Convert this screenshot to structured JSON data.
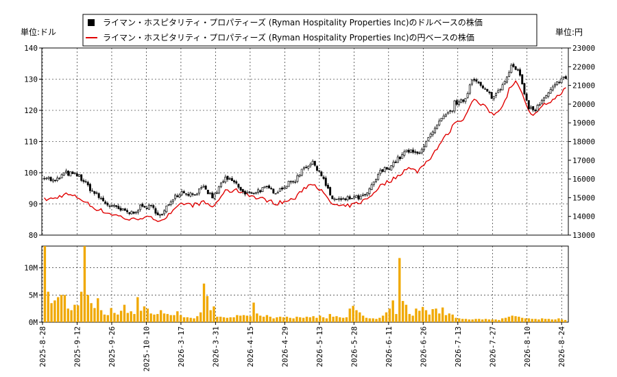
{
  "chart_data": {
    "type": "line",
    "units": {
      "left": "単位:ドル",
      "right": "単位:円"
    },
    "legend": [
      {
        "label": "ライマン・ホスピタリティ・プロパティーズ (Ryman Hospitality Properties Inc)のドルベースの株価",
        "color": "#000000",
        "marker": "square"
      },
      {
        "label": "ライマン・ホスピタリティ・プロパティーズ (Ryman Hospitality Properties Inc)の円ベースの株価",
        "color": "#e00000",
        "marker": "line"
      }
    ],
    "price_axis": {
      "ylim": [
        80,
        140
      ],
      "ticks": [
        "80",
        "90",
        "100",
        "110",
        "120",
        "130",
        "140"
      ]
    },
    "yen_axis": {
      "ylim": [
        13000,
        23000
      ],
      "ticks": [
        "13000",
        "14000",
        "15000",
        "16000",
        "17000",
        "18000",
        "19000",
        "20000",
        "21000",
        "22000",
        "23000"
      ]
    },
    "volume_axis": {
      "ylim": [
        0,
        14000000
      ],
      "ticks": [
        {
          "value": 0,
          "label": "0M"
        },
        {
          "value": 5000000,
          "label": "5M"
        },
        {
          "value": 10000000,
          "label": "10M"
        }
      ]
    },
    "x_ticks": [
      "2025-8-28",
      "2025-9-12",
      "2025-9-26",
      "2025-10-10",
      "2026-3-17",
      "2026-3-31",
      "2026-4-15",
      "2026-4-29",
      "2026-5-13",
      "2026-5-28",
      "2026-6-11",
      "2026-6-26",
      "2026-7-13",
      "2026-7-27",
      "2026-8-10",
      "2026-8-24"
    ],
    "candle_color": "#000000",
    "yen_line_color": "#e00000",
    "volume_color": "#f0a800",
    "n_days": 240,
    "dollar_close_anchors": [
      [
        0,
        99
      ],
      [
        6,
        97
      ],
      [
        12,
        100
      ],
      [
        20,
        99
      ],
      [
        28,
        94
      ],
      [
        36,
        90
      ],
      [
        44,
        88
      ],
      [
        50,
        87
      ],
      [
        56,
        89
      ],
      [
        62,
        89
      ],
      [
        68,
        86
      ],
      [
        74,
        92
      ],
      [
        80,
        94
      ],
      [
        86,
        93
      ],
      [
        92,
        95
      ],
      [
        98,
        92
      ],
      [
        104,
        98
      ],
      [
        110,
        97
      ],
      [
        116,
        93
      ],
      [
        122,
        94
      ],
      [
        128,
        95
      ],
      [
        134,
        94
      ],
      [
        140,
        96
      ],
      [
        146,
        98
      ],
      [
        150,
        102
      ],
      [
        156,
        103
      ],
      [
        160,
        100
      ],
      [
        166,
        92
      ],
      [
        172,
        91
      ],
      [
        178,
        92
      ],
      [
        184,
        92
      ],
      [
        188,
        94
      ],
      [
        194,
        100
      ],
      [
        200,
        102
      ],
      [
        204,
        104
      ],
      [
        210,
        107
      ],
      [
        216,
        106
      ],
      [
        224,
        112
      ],
      [
        230,
        117
      ],
      [
        236,
        120
      ],
      [
        238,
        123
      ],
      [
        240,
        122
      ],
      [
        244,
        124
      ],
      [
        248,
        131
      ],
      [
        252,
        128
      ],
      [
        256,
        126
      ],
      [
        260,
        124
      ],
      [
        266,
        129
      ],
      [
        270,
        134
      ],
      [
        274,
        133
      ],
      [
        278,
        126
      ],
      [
        280,
        121
      ],
      [
        284,
        120
      ],
      [
        290,
        124
      ],
      [
        296,
        128
      ],
      [
        300,
        131
      ],
      [
        302,
        130
      ]
    ],
    "yen_close_anchors": [
      [
        0,
        14900
      ],
      [
        6,
        14950
      ],
      [
        12,
        15200
      ],
      [
        20,
        15000
      ],
      [
        28,
        14500
      ],
      [
        36,
        14200
      ],
      [
        44,
        14000
      ],
      [
        50,
        13800
      ],
      [
        56,
        13950
      ],
      [
        62,
        13900
      ],
      [
        68,
        13800
      ],
      [
        74,
        14200
      ],
      [
        80,
        14700
      ],
      [
        86,
        14600
      ],
      [
        92,
        14750
      ],
      [
        98,
        14500
      ],
      [
        104,
        15300
      ],
      [
        110,
        15400
      ],
      [
        116,
        15300
      ],
      [
        122,
        15000
      ],
      [
        128,
        14900
      ],
      [
        134,
        14700
      ],
      [
        140,
        14800
      ],
      [
        146,
        15000
      ],
      [
        150,
        15500
      ],
      [
        156,
        15800
      ],
      [
        160,
        15400
      ],
      [
        166,
        14700
      ],
      [
        172,
        14500
      ],
      [
        178,
        14600
      ],
      [
        184,
        14800
      ],
      [
        188,
        15000
      ],
      [
        194,
        15600
      ],
      [
        200,
        15900
      ],
      [
        204,
        16100
      ],
      [
        210,
        16600
      ],
      [
        216,
        16400
      ],
      [
        224,
        17200
      ],
      [
        230,
        18000
      ],
      [
        236,
        18700
      ],
      [
        238,
        19200
      ],
      [
        240,
        19000
      ],
      [
        244,
        19400
      ],
      [
        248,
        20300
      ],
      [
        252,
        20000
      ],
      [
        256,
        19800
      ],
      [
        260,
        19400
      ],
      [
        266,
        20000
      ],
      [
        270,
        21000
      ],
      [
        274,
        21200
      ],
      [
        278,
        20300
      ],
      [
        280,
        19600
      ],
      [
        284,
        19400
      ],
      [
        290,
        20000
      ],
      [
        296,
        20300
      ],
      [
        300,
        20700
      ],
      [
        302,
        20800
      ]
    ],
    "volume_values": [
      14000000,
      5600000,
      3500000,
      4000000,
      4600000,
      5000000,
      5000000,
      2500000,
      2200000,
      3200000,
      3100000,
      5600000,
      14000000,
      5000000,
      3500000,
      2600000,
      4400000,
      2200000,
      1400000,
      1300000,
      2600000,
      1700000,
      1400000,
      2100000,
      3200000,
      1700000,
      2000000,
      1500000,
      4600000,
      2100000,
      2900000,
      2500000,
      1600000,
      1400000,
      1500000,
      2200000,
      1600000,
      1500000,
      1300000,
      1300000,
      2000000,
      1300000,
      900000,
      900000,
      800000,
      700000,
      1100000,
      1800000,
      7100000,
      4800000,
      2200000,
      2900000,
      1000000,
      1000000,
      900000,
      800000,
      900000,
      900000,
      1300000,
      1200000,
      1300000,
      1200000,
      1100000,
      3600000,
      1600000,
      1200000,
      1000000,
      1300000,
      1000000,
      700000,
      900000,
      1000000,
      900000,
      1000000,
      800000,
      700000,
      1000000,
      900000,
      800000,
      1000000,
      900000,
      1100000,
      800000,
      1200000,
      900000,
      700000,
      1500000,
      1000000,
      1100000,
      900000,
      800000,
      900000,
      2500000,
      3000000,
      2200000,
      1800000,
      1200000,
      800000,
      700000,
      700000,
      600000,
      800000,
      1200000,
      1800000,
      2500000,
      4000000,
      1500000,
      11800000,
      3900000,
      3200000,
      1500000,
      1200000,
      2500000,
      2100000,
      2800000,
      2200000,
      1400000,
      2400000,
      2500000,
      1600000,
      2700000,
      1300000,
      1600000,
      1400000,
      800000,
      700000,
      600000,
      600000,
      500000,
      500000,
      600000,
      600000,
      500000,
      600000,
      500000,
      500000,
      500000,
      400000,
      700000,
      800000,
      1000000,
      1200000,
      1100000,
      1000000,
      800000,
      700000,
      700000,
      600000,
      600000,
      500000,
      700000,
      600000,
      600000,
      500000,
      500000,
      700000,
      500000,
      400000
    ]
  }
}
